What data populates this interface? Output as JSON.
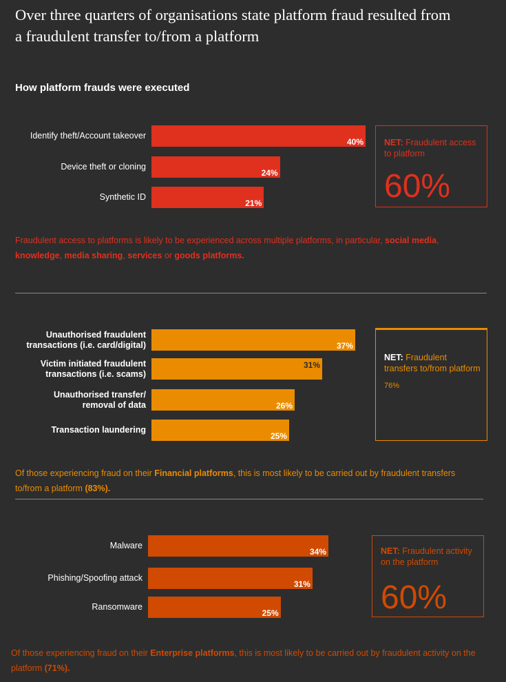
{
  "headline": "Over three quarters of organisations state platform fraud resulted from a fraudulent transfer to/from a platform",
  "subtitle": "How platform frauds were executed",
  "colors": {
    "background": "#2d2d2d",
    "red": "#e0301e",
    "amber": "#eb8c00",
    "orange": "#d04a02"
  },
  "chart_data": [
    {
      "type": "bar",
      "orientation": "horizontal",
      "unit": "%",
      "categories": [
        "Identify theft/Account takeover",
        "Device theft or cloning",
        "Synthetic ID"
      ],
      "values": [
        40,
        24,
        21
      ],
      "labels": [
        "40%",
        "24%",
        "21%"
      ],
      "color": "#e0301e",
      "net": {
        "label_bold": "NET:",
        "label_rest": " Fraudulent access to platform",
        "value": "60%"
      },
      "note": {
        "parts": [
          {
            "text": "Fraudulent access to platforms is likely to be experienced across multiple platforms, in particular, ",
            "bold": false
          },
          {
            "text": "social media",
            "bold": true
          },
          {
            "text": ", ",
            "bold": false
          },
          {
            "text": "knowledge",
            "bold": true
          },
          {
            "text": ", ",
            "bold": false
          },
          {
            "text": "media sharing",
            "bold": true
          },
          {
            "text": ", ",
            "bold": false
          },
          {
            "text": "services",
            "bold": true
          },
          {
            "text": " or ",
            "bold": false
          },
          {
            "text": "goods platforms.",
            "bold": true
          }
        ]
      }
    },
    {
      "type": "bar",
      "orientation": "horizontal",
      "unit": "%",
      "categories": [
        "Unauthorised fraudulent transactions (i.e. card/digital)",
        "Victim initiated fraudulent transactions (i.e. scams)",
        "Unauthorised transfer/ removal of data",
        "Transaction laundering"
      ],
      "category_lines": [
        [
          "Unauthorised fraudulent",
          "transactions (i.e. card/digital)"
        ],
        [
          "Victim initiated fraudulent",
          "transactions (i.e. scams)"
        ],
        [
          "Unauthorised transfer/",
          "removal of data"
        ],
        [
          "Transaction laundering"
        ]
      ],
      "values": [
        37,
        31,
        26,
        25
      ],
      "labels": [
        "37%",
        "31%",
        "26%",
        "25%"
      ],
      "color": "#eb8c00",
      "net": {
        "label_bold": "NET:",
        "label_rest": " Fraudulent transfers to/from platform",
        "value": "76%"
      },
      "note": {
        "parts": [
          {
            "text": "Of those experiencing fraud on their ",
            "bold": false
          },
          {
            "text": "Financial platforms",
            "bold": true
          },
          {
            "text": ", this is most likely to be carried out by fraudulent transfers to/from a platform ",
            "bold": false
          },
          {
            "text": "(83%).",
            "bold": true
          }
        ]
      }
    },
    {
      "type": "bar",
      "orientation": "horizontal",
      "unit": "%",
      "categories": [
        "Malware",
        "Phishing/Spoofing attack",
        "Ransomware"
      ],
      "values": [
        34,
        31,
        25
      ],
      "labels": [
        "34%",
        "31%",
        "25%"
      ],
      "color": "#d04a02",
      "net": {
        "label_bold": "NET:",
        "label_rest": " Fraudulent activity on the platform",
        "value": "60%"
      },
      "note": {
        "parts": [
          {
            "text": "Of those experiencing fraud on their ",
            "bold": false
          },
          {
            "text": "Enterprise platforms",
            "bold": true
          },
          {
            "text": ", this is most likely to be carried out by fraudulent activity on the platform ",
            "bold": false
          },
          {
            "text": "(71%).",
            "bold": true
          }
        ]
      }
    }
  ]
}
